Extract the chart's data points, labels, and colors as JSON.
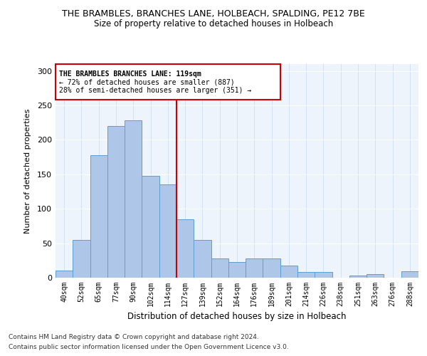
{
  "title1": "THE BRAMBLES, BRANCHES LANE, HOLBEACH, SPALDING, PE12 7BE",
  "title2": "Size of property relative to detached houses in Holbeach",
  "xlabel": "Distribution of detached houses by size in Holbeach",
  "ylabel": "Number of detached properties",
  "footer1": "Contains HM Land Registry data © Crown copyright and database right 2024.",
  "footer2": "Contains public sector information licensed under the Open Government Licence v3.0.",
  "annotation_line1": "THE BRAMBLES BRANCHES LANE: 119sqm",
  "annotation_line2": "← 72% of detached houses are smaller (887)",
  "annotation_line3": "28% of semi-detached houses are larger (351) →",
  "bar_labels": [
    "40sqm",
    "52sqm",
    "65sqm",
    "77sqm",
    "90sqm",
    "102sqm",
    "114sqm",
    "127sqm",
    "139sqm",
    "152sqm",
    "164sqm",
    "176sqm",
    "189sqm",
    "201sqm",
    "214sqm",
    "226sqm",
    "238sqm",
    "251sqm",
    "263sqm",
    "276sqm",
    "288sqm"
  ],
  "bar_values": [
    10,
    55,
    178,
    220,
    228,
    148,
    135,
    85,
    55,
    28,
    23,
    28,
    28,
    18,
    8,
    8,
    0,
    3,
    5,
    0,
    9
  ],
  "bar_color": "#aec6e8",
  "bar_edge_color": "#5a9fd4",
  "vline_x": 6.5,
  "vline_color": "#cc0000",
  "bg_color": "#eef4fb",
  "annotation_box_color": "#ffffff",
  "annotation_box_edge": "#cc0000",
  "ylim": [
    0,
    310
  ],
  "yticks": [
    0,
    50,
    100,
    150,
    200,
    250,
    300
  ]
}
